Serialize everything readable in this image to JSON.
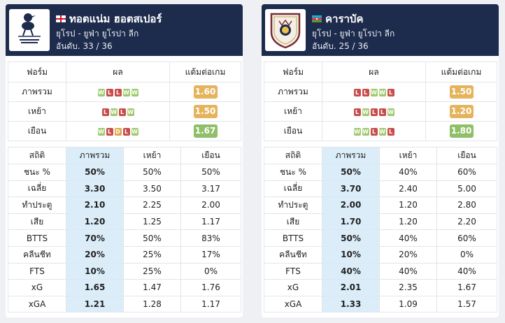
{
  "teams": [
    {
      "name": "ทอตแน่ม ฮอตสเปอร์",
      "flag_icon": "england-flag-icon",
      "logo_icon": "tottenham-crest-icon",
      "league": "ยุโรป - ยูฟ่า ยูโรปา ลีก",
      "rank": "อันดับ. 33 / 36",
      "form": {
        "headers": [
          "ฟอร์ม",
          "ผล",
          "แต้มต่อเกม"
        ],
        "rows": [
          {
            "label": "ภาพรวม",
            "results": [
              "W",
              "L",
              "L",
              "W",
              "W"
            ],
            "ppg": "1.60",
            "ppg_level": "mid"
          },
          {
            "label": "เหย้า",
            "results": [
              "L",
              "W",
              "L",
              "W"
            ],
            "ppg": "1.50",
            "ppg_level": "mid"
          },
          {
            "label": "เยือน",
            "results": [
              "W",
              "L",
              "D",
              "L",
              "W"
            ],
            "ppg": "1.67",
            "ppg_level": "good"
          }
        ]
      },
      "stats": {
        "headers": [
          "สถิติ",
          "ภาพรวม",
          "เหย้า",
          "เยือน"
        ],
        "rows": [
          {
            "label": "ชนะ %",
            "overall": "50%",
            "home": "50%",
            "away": "50%"
          },
          {
            "label": "เฉลี่ย",
            "overall": "3.30",
            "home": "3.50",
            "away": "3.17"
          },
          {
            "label": "ทำประตู",
            "overall": "2.10",
            "home": "2.25",
            "away": "2.00"
          },
          {
            "label": "เสีย",
            "overall": "1.20",
            "home": "1.25",
            "away": "1.17"
          },
          {
            "label": "BTTS",
            "overall": "70%",
            "home": "50%",
            "away": "83%"
          },
          {
            "label": "คลีนชีท",
            "overall": "20%",
            "home": "25%",
            "away": "17%"
          },
          {
            "label": "FTS",
            "overall": "10%",
            "home": "25%",
            "away": "0%"
          },
          {
            "label": "xG",
            "overall": "1.65",
            "home": "1.47",
            "away": "1.76"
          },
          {
            "label": "xGA",
            "overall": "1.21",
            "home": "1.28",
            "away": "1.17"
          }
        ]
      }
    },
    {
      "name": "คาราบัค",
      "flag_icon": "azerbaijan-flag-icon",
      "logo_icon": "qarabag-crest-icon",
      "league": "ยุโรป - ยูฟ่า ยูโรปา ลีก",
      "rank": "อันดับ. 25 / 36",
      "form": {
        "headers": [
          "ฟอร์ม",
          "ผล",
          "แต้มต่อเกม"
        ],
        "rows": [
          {
            "label": "ภาพรวม",
            "results": [
              "L",
              "L",
              "W",
              "W",
              "L"
            ],
            "ppg": "1.50",
            "ppg_level": "mid"
          },
          {
            "label": "เหย้า",
            "results": [
              "L",
              "W",
              "L",
              "L",
              "W"
            ],
            "ppg": "1.20",
            "ppg_level": "mid"
          },
          {
            "label": "เยือน",
            "results": [
              "W",
              "W",
              "L",
              "W",
              "L"
            ],
            "ppg": "1.80",
            "ppg_level": "good"
          }
        ]
      },
      "stats": {
        "headers": [
          "สถิติ",
          "ภาพรวม",
          "เหย้า",
          "เยือน"
        ],
        "rows": [
          {
            "label": "ชนะ %",
            "overall": "50%",
            "home": "40%",
            "away": "60%"
          },
          {
            "label": "เฉลี่ย",
            "overall": "3.70",
            "home": "2.40",
            "away": "5.00"
          },
          {
            "label": "ทำประตู",
            "overall": "2.00",
            "home": "1.20",
            "away": "2.80"
          },
          {
            "label": "เสีย",
            "overall": "1.70",
            "home": "1.20",
            "away": "2.20"
          },
          {
            "label": "BTTS",
            "overall": "50%",
            "home": "40%",
            "away": "60%"
          },
          {
            "label": "คลีนชีท",
            "overall": "10%",
            "home": "20%",
            "away": "0%"
          },
          {
            "label": "FTS",
            "overall": "40%",
            "home": "40%",
            "away": "40%"
          },
          {
            "label": "xG",
            "overall": "2.01",
            "home": "2.35",
            "away": "1.67"
          },
          {
            "label": "xGA",
            "overall": "1.33",
            "home": "1.09",
            "away": "1.57"
          }
        ]
      }
    }
  ],
  "colors": {
    "header_bg": "#1d2b4c",
    "win": "#a0c96f",
    "loss": "#c94c4c",
    "draw": "#e0a74b",
    "ppg_mid": "#e5b35c",
    "ppg_good": "#8fbf68",
    "highlight_column": "#dcedfa"
  }
}
